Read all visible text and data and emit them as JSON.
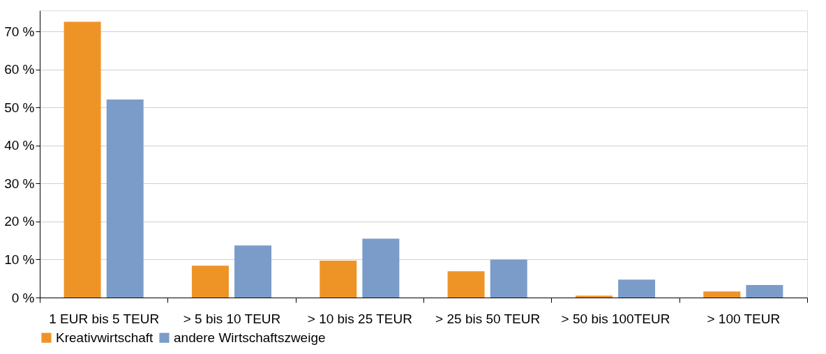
{
  "chart_data": {
    "type": "bar",
    "categories": [
      "1 EUR bis 5 TEUR",
      "> 5 bis 10 TEUR",
      "> 10 bis 25 TEUR",
      "> 25 bis 50 TEUR",
      "> 50 bis 100TEUR",
      "> 100 TEUR"
    ],
    "series": [
      {
        "name": "Kreativwirtschaft",
        "color": "#ee9427",
        "values": [
          72.5,
          8.4,
          9.7,
          6.9,
          0.5,
          1.6
        ]
      },
      {
        "name": "andere Wirtschaftszweige",
        "color": "#7b9cc9",
        "values": [
          52.1,
          13.7,
          15.5,
          10.0,
          4.7,
          3.3
        ]
      }
    ],
    "ylim": [
      0,
      75.5
    ],
    "yticks": [
      {
        "value": 0,
        "label": "0 %"
      },
      {
        "value": 10,
        "label": "10 %"
      },
      {
        "value": 20,
        "label": "20 %"
      },
      {
        "value": 30,
        "label": "30 %"
      },
      {
        "value": 40,
        "label": "40 %"
      },
      {
        "value": 50,
        "label": "50 %"
      },
      {
        "value": 60,
        "label": "60 %"
      },
      {
        "value": 70,
        "label": "70 %"
      }
    ],
    "grid": "y",
    "legend": "bottom"
  }
}
